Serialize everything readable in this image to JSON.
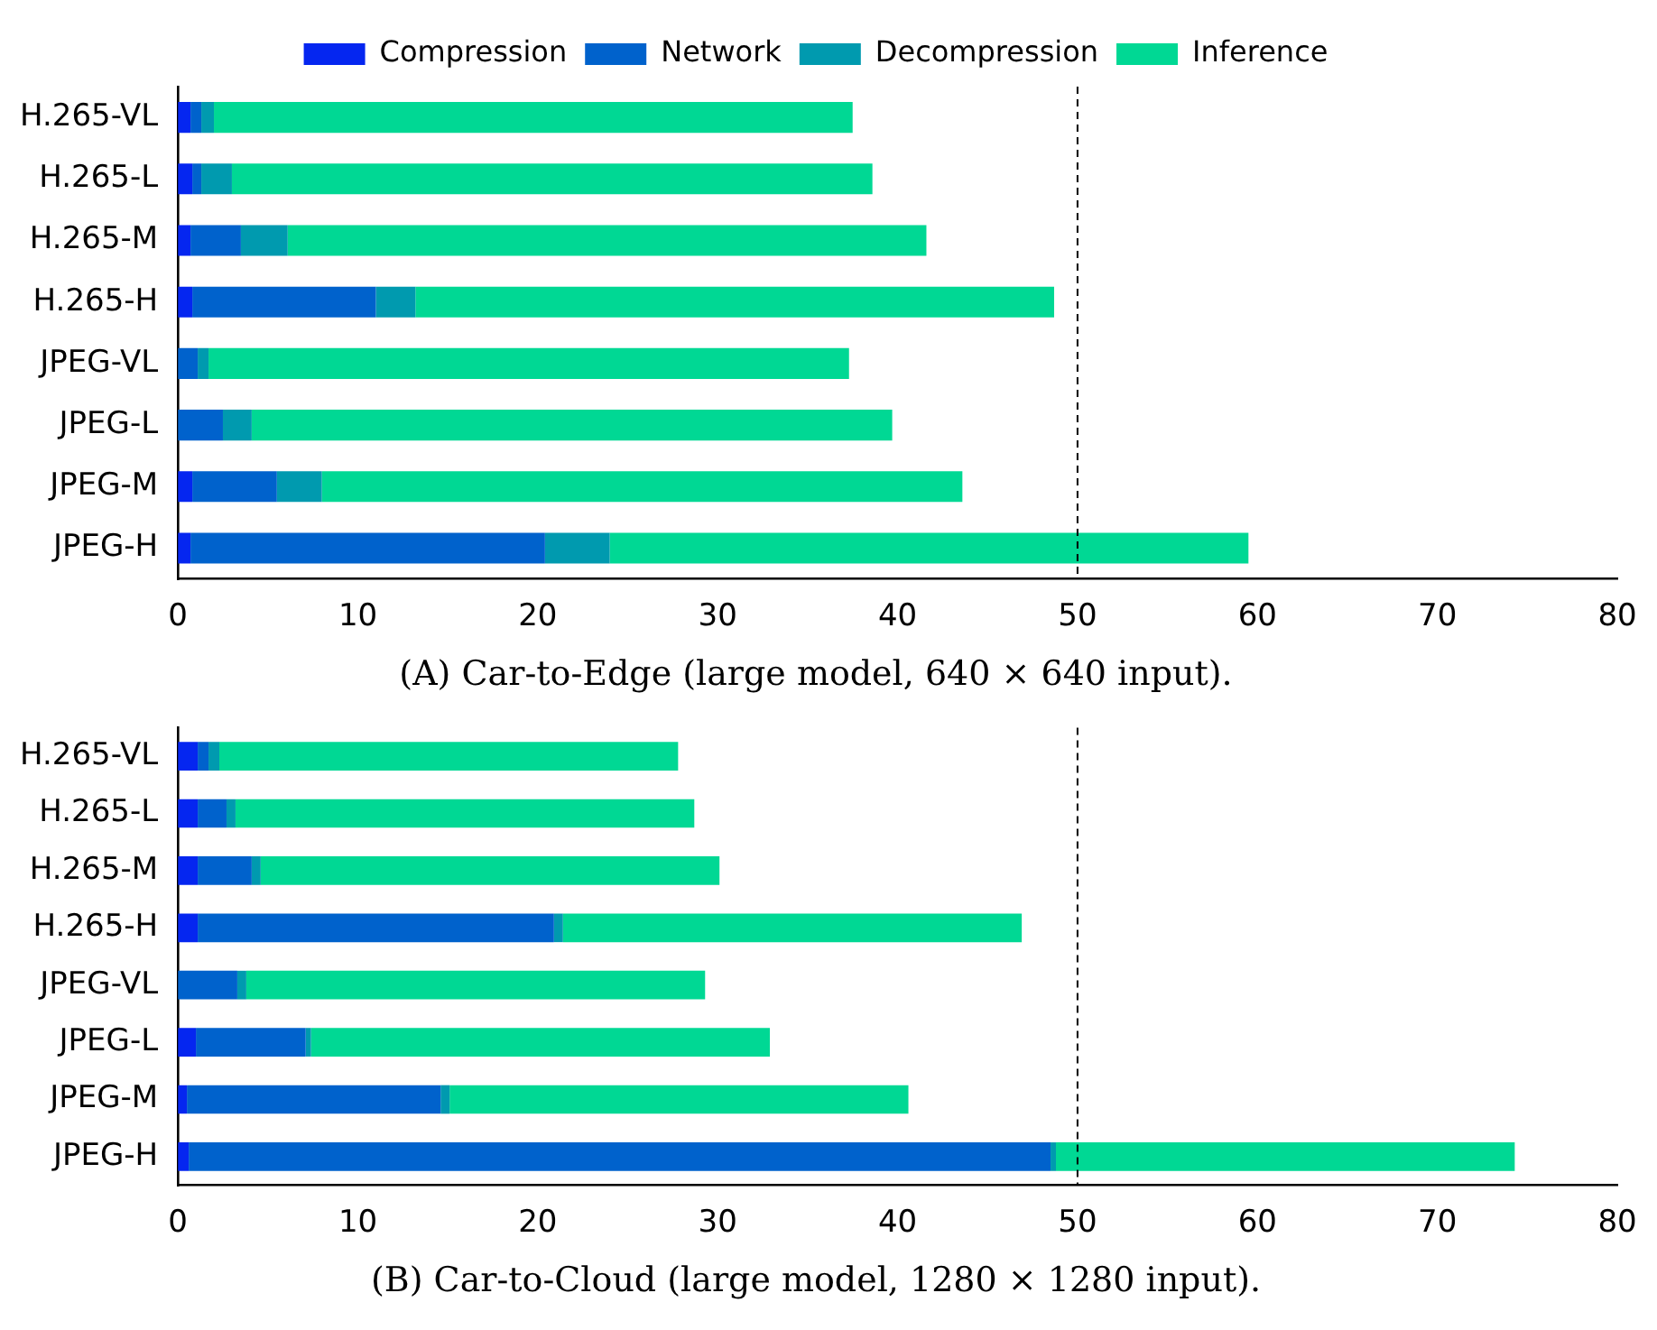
{
  "chart_data": [
    {
      "type": "bar",
      "orientation": "horizontal",
      "stacked": true,
      "title": "(A) Car-to-Edge (large model, 640 × 640 input).",
      "categories": [
        "H.265-VL",
        "H.265-L",
        "H.265-M",
        "H.265-H",
        "JPEG-VL",
        "JPEG-L",
        "JPEG-M",
        "JPEG-H"
      ],
      "series": [
        {
          "name": "Compression",
          "color": "#0526f0",
          "values": [
            0.7,
            0.8,
            0.7,
            0.8,
            0,
            0,
            0.8,
            0.7
          ]
        },
        {
          "name": "Network",
          "color": "#0062cc",
          "values": [
            0.6,
            0.5,
            2.8,
            10.2,
            1.1,
            2.5,
            4.7,
            19.7
          ]
        },
        {
          "name": "Decompression",
          "color": "#009aaf",
          "values": [
            0.7,
            1.7,
            2.6,
            2.2,
            0.6,
            1.6,
            2.5,
            3.6
          ]
        },
        {
          "name": "Inference",
          "color": "#00d894",
          "values": [
            35.5,
            35.6,
            35.5,
            35.5,
            35.6,
            35.6,
            35.6,
            35.5
          ]
        }
      ],
      "xlim": [
        0,
        80
      ],
      "xticks": [
        0,
        10,
        20,
        30,
        40,
        50,
        60,
        70,
        80
      ],
      "ref_lines": [
        {
          "axis": "x",
          "value": 50,
          "line_style": "dashed",
          "color": "#000000"
        }
      ],
      "legend": "top",
      "grid": false
    },
    {
      "type": "bar",
      "orientation": "horizontal",
      "stacked": true,
      "title": "(B) Car-to-Cloud (large model, 1280 × 1280 input).",
      "categories": [
        "H.265-VL",
        "H.265-L",
        "H.265-M",
        "H.265-H",
        "JPEG-VL",
        "JPEG-L",
        "JPEG-M",
        "JPEG-H"
      ],
      "series": [
        {
          "color": "#0526f0",
          "values": [
            1.1,
            1.1,
            1.1,
            1.1,
            0,
            1.0,
            0.5,
            0.6
          ]
        },
        {
          "color": "#0062cc",
          "values": [
            0.6,
            1.6,
            3.0,
            19.8,
            3.3,
            6.1,
            14.1,
            47.9
          ]
        },
        {
          "color": "#009aaf",
          "values": [
            0.6,
            0.5,
            0.5,
            0.5,
            0.5,
            0.3,
            0.5,
            0.3
          ]
        },
        {
          "color": "#00d894",
          "values": [
            25.5,
            25.5,
            25.5,
            25.5,
            25.5,
            25.5,
            25.5,
            25.5
          ]
        }
      ],
      "xlim": [
        0,
        80
      ],
      "xticks": [
        0,
        10,
        20,
        30,
        40,
        50,
        60,
        70,
        80
      ],
      "ref_lines": [
        {
          "axis": "x",
          "value": 50,
          "line_style": "dashed",
          "color": "#000000"
        }
      ],
      "legend": false,
      "grid": false
    }
  ]
}
